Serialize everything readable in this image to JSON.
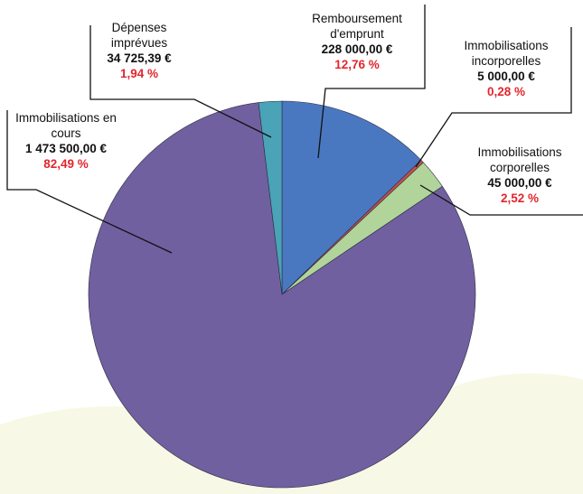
{
  "chart_data": {
    "type": "pie",
    "categories": [
      "Remboursement d'emprunt",
      "Immobilisations incorporelles",
      "Immobilisations corporelles",
      "Immobilisations en cours",
      "Dépenses imprévues"
    ],
    "values": [
      12.76,
      0.28,
      2.52,
      82.49,
      1.94
    ],
    "value_labels": [
      "12,76 %",
      "0,28 %",
      "2,52 %",
      "82,49 %",
      "1,94 %"
    ],
    "amounts": [
      228000,
      5000,
      45000,
      1473500,
      34725.39
    ],
    "amount_labels": [
      "228 000,00 €",
      "5 000,00 €",
      "45 000,00 €",
      "1 473 500,00 €",
      "34 725,39 €"
    ],
    "colors": [
      "#4a78c0",
      "#c0504d",
      "#b0d49a",
      "#7160a0",
      "#4aa3b6"
    ]
  }
}
